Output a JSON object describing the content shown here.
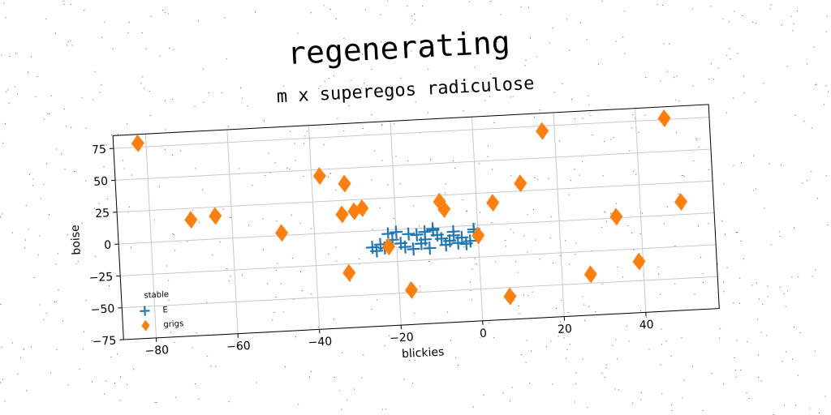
{
  "chart_data": {
    "type": "scatter",
    "title": "regenerating",
    "subtitle": "m x superegos radiculose",
    "xlabel": "blickies",
    "ylabel": "boise",
    "xlim": [
      -88,
      58
    ],
    "ylim": [
      -75,
      85
    ],
    "xticks": [
      -80,
      -60,
      -40,
      -20,
      0,
      20,
      40
    ],
    "yticks": [
      -75,
      -50,
      -25,
      0,
      25,
      50,
      75
    ],
    "grid": true,
    "legend": {
      "title": "stable",
      "placement": "lower-left"
    },
    "colors": {
      "E": "#1f77b4",
      "grigs": "#ff7f0e"
    },
    "series": [
      {
        "name": "E",
        "marker": "plus",
        "points": [
          [
            -26,
            -13
          ],
          [
            -25,
            -16
          ],
          [
            -24,
            -11
          ],
          [
            -23,
            -14
          ],
          [
            -22,
            -3
          ],
          [
            -21,
            -8
          ],
          [
            -20,
            -2
          ],
          [
            -19,
            -11
          ],
          [
            -18,
            -14
          ],
          [
            -17,
            -4
          ],
          [
            -16,
            -16
          ],
          [
            -15,
            -5
          ],
          [
            -14,
            -12
          ],
          [
            -13,
            -3
          ],
          [
            -12,
            -16
          ],
          [
            -11,
            -1
          ],
          [
            -10,
            -6
          ],
          [
            -9,
            -9
          ],
          [
            -8,
            -14
          ],
          [
            -7,
            -11
          ],
          [
            -6,
            -7
          ],
          [
            -5,
            -13
          ],
          [
            -4,
            -9
          ],
          [
            -3,
            -14
          ],
          [
            -2,
            -12
          ],
          [
            -1,
            -5
          ],
          [
            -11,
            -2
          ],
          [
            -13,
            -9
          ],
          [
            -6,
            -4
          ],
          [
            -1,
            -3
          ]
        ]
      },
      {
        "name": "grigs",
        "marker": "diamond",
        "points": [
          [
            -82,
            78
          ],
          [
            -70,
            16
          ],
          [
            -64,
            18
          ],
          [
            -48,
            2
          ],
          [
            -38,
            45
          ],
          [
            -32,
            38
          ],
          [
            -33,
            14
          ],
          [
            -30,
            16
          ],
          [
            -28,
            18
          ],
          [
            -9,
            20
          ],
          [
            -8,
            14
          ],
          [
            4,
            17
          ],
          [
            11,
            31
          ],
          [
            17,
            71
          ],
          [
            47,
            76
          ],
          [
            -32,
            -32
          ],
          [
            -22,
            -13
          ],
          [
            -17,
            -48
          ],
          [
            0,
            -8
          ],
          [
            7,
            -57
          ],
          [
            27,
            -43
          ],
          [
            34,
            1
          ],
          [
            39,
            -35
          ],
          [
            50,
            10
          ]
        ]
      }
    ]
  }
}
